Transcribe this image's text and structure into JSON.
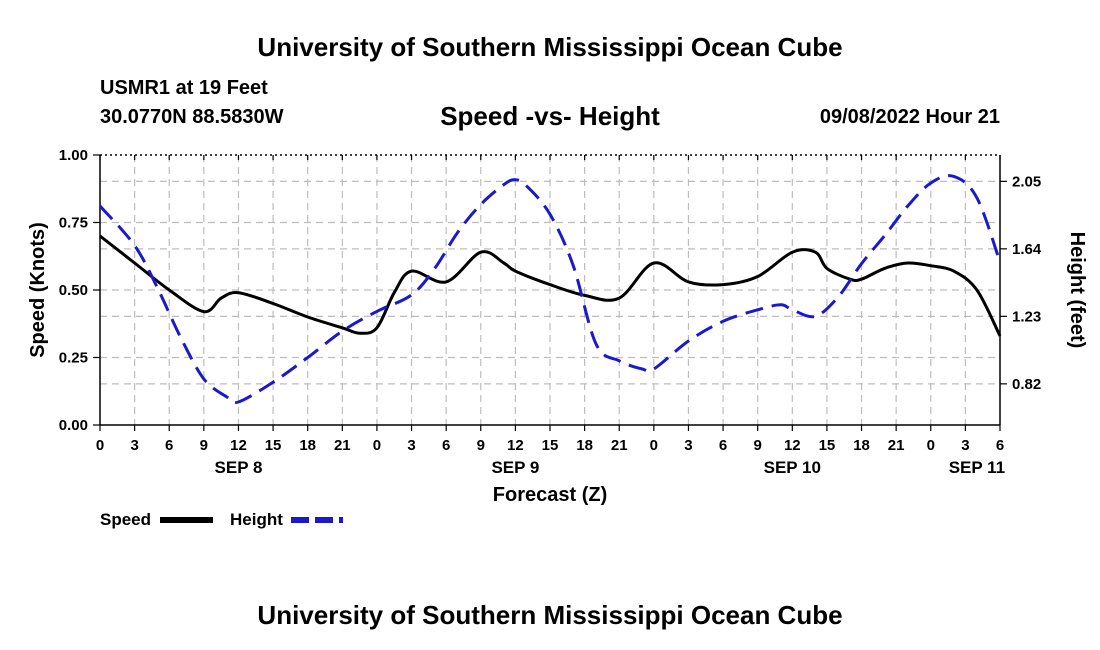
{
  "header": {
    "title": "University of Southern Mississippi Ocean Cube",
    "station": "USMR1 at 19 Feet",
    "coords": "30.0770N  88.5830W",
    "datetime": "09/08/2022 Hour 21",
    "footer_title": "University of Southern Mississippi Ocean Cube"
  },
  "chart_data": {
    "type": "line",
    "title": "Speed -vs- Height",
    "xlabel": "Forecast (Z)",
    "ylabel": "Speed (Knots)",
    "y2label": "Height (feet)",
    "x_unit": "hours from SEP 8 00Z",
    "xlim": [
      0,
      78
    ],
    "ylim": [
      0,
      1.0
    ],
    "y2lim": [
      0.57,
      2.21
    ],
    "x_ticks": [
      0,
      3,
      6,
      9,
      12,
      15,
      18,
      21,
      24,
      27,
      30,
      33,
      36,
      39,
      42,
      45,
      48,
      51,
      54,
      57,
      60,
      63,
      66,
      69,
      72,
      75,
      78
    ],
    "x_tick_labels": [
      "0",
      "3",
      "6",
      "9",
      "12",
      "15",
      "18",
      "21",
      "0",
      "3",
      "6",
      "9",
      "12",
      "15",
      "18",
      "21",
      "0",
      "3",
      "6",
      "9",
      "12",
      "15",
      "18",
      "21",
      "0",
      "3",
      "6"
    ],
    "y_ticks": [
      0,
      0.25,
      0.5,
      0.75,
      1.0
    ],
    "y_tick_labels": [
      "0.00",
      "0.25",
      "0.50",
      "0.75",
      "1.00"
    ],
    "y2_ticks": [
      0.82,
      1.23,
      1.64,
      2.05
    ],
    "y2_tick_labels": [
      "0.82",
      "1.23",
      "1.64",
      "2.05"
    ],
    "day_labels": [
      {
        "label": "SEP 8",
        "x": 12
      },
      {
        "label": "SEP 9",
        "x": 36
      },
      {
        "label": "SEP 10",
        "x": 60
      },
      {
        "label": "SEP 11",
        "x": 76
      }
    ],
    "grid": true,
    "series": [
      {
        "name": "Speed",
        "axis": "left",
        "color": "#000000",
        "style": "solid",
        "x": [
          0,
          3,
          6,
          9,
          10.5,
          12,
          15,
          18,
          21,
          22.5,
          24,
          25.5,
          27,
          30,
          33,
          35,
          36,
          39,
          42,
          45,
          48,
          51,
          54,
          57,
          60,
          62,
          63,
          65,
          66,
          68,
          70,
          72,
          74,
          76,
          78
        ],
        "values": [
          0.7,
          0.6,
          0.5,
          0.42,
          0.47,
          0.49,
          0.45,
          0.4,
          0.36,
          0.34,
          0.36,
          0.49,
          0.57,
          0.53,
          0.64,
          0.6,
          0.57,
          0.52,
          0.48,
          0.47,
          0.6,
          0.53,
          0.52,
          0.55,
          0.64,
          0.64,
          0.58,
          0.54,
          0.54,
          0.58,
          0.6,
          0.59,
          0.57,
          0.5,
          0.33
        ]
      },
      {
        "name": "Height",
        "axis": "right",
        "color": "#1a1acc",
        "style": "dashed",
        "x": [
          0,
          3,
          5,
          7,
          9,
          11,
          12,
          15,
          18,
          21,
          24,
          27,
          29,
          31,
          33,
          35,
          36,
          37,
          39,
          41,
          43,
          45,
          47,
          48,
          51,
          54,
          57,
          59,
          60,
          62,
          64,
          66,
          68,
          70,
          72,
          74,
          76,
          78
        ],
        "values": [
          1.9,
          1.66,
          1.4,
          1.1,
          0.85,
          0.74,
          0.71,
          0.83,
          0.98,
          1.14,
          1.26,
          1.36,
          1.52,
          1.74,
          1.91,
          2.03,
          2.06,
          2.02,
          1.85,
          1.54,
          1.06,
          0.96,
          0.91,
          0.91,
          1.08,
          1.2,
          1.27,
          1.3,
          1.27,
          1.23,
          1.35,
          1.55,
          1.72,
          1.9,
          2.04,
          2.08,
          1.95,
          1.56
        ]
      }
    ]
  },
  "legend": {
    "speed_label": "Speed",
    "height_label": "Height"
  }
}
